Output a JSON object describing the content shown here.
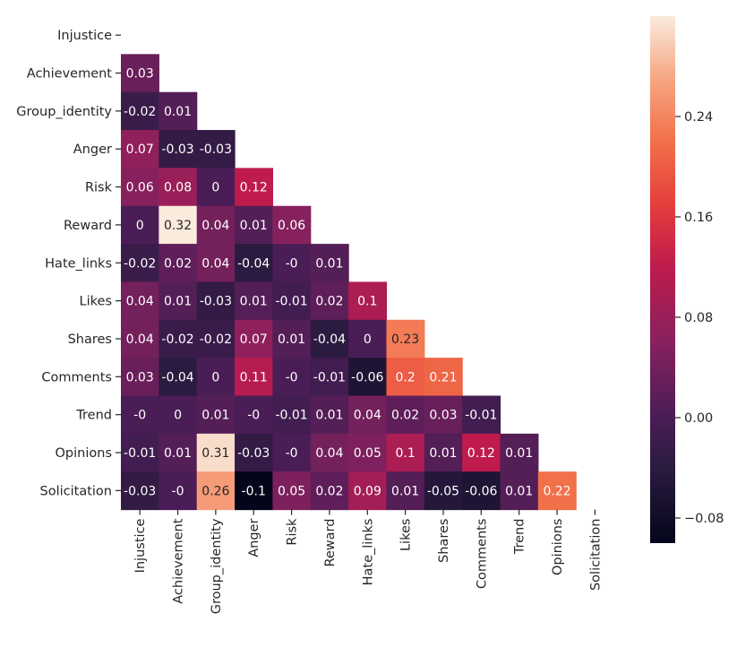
{
  "chart_data": {
    "type": "heatmap",
    "variables": [
      "Injustice",
      "Achievement",
      "Group_identity",
      "Anger",
      "Risk",
      "Reward",
      "Hate_links",
      "Likes",
      "Shares",
      "Comments",
      "Trend",
      "Opinions",
      "Solicitation"
    ],
    "matrix_lower_triangle": [
      [],
      [
        "0.03"
      ],
      [
        "-0.02",
        "0.01"
      ],
      [
        "0.07",
        "-0.03",
        "-0.03"
      ],
      [
        "0.06",
        "0.08",
        "0",
        "0.12"
      ],
      [
        "0",
        "0.32",
        "0.04",
        "0.01",
        "0.06"
      ],
      [
        "-0.02",
        "0.02",
        "0.04",
        "-0.04",
        "-0",
        "0.01"
      ],
      [
        "0.04",
        "0.01",
        "-0.03",
        "0.01",
        "-0.01",
        "0.02",
        "0.1"
      ],
      [
        "0.04",
        "-0.02",
        "-0.02",
        "0.07",
        "0.01",
        "-0.04",
        "0",
        "0.23"
      ],
      [
        "0.03",
        "-0.04",
        "0",
        "0.11",
        "-0",
        "-0.01",
        "-0.06",
        "0.2",
        "0.21"
      ],
      [
        "-0",
        "0",
        "0.01",
        "-0",
        "-0.01",
        "0.01",
        "0.04",
        "0.02",
        "0.03",
        "-0.01"
      ],
      [
        "-0.01",
        "0.01",
        "0.31",
        "-0.03",
        "-0",
        "0.04",
        "0.05",
        "0.1",
        "0.01",
        "0.12",
        "0.01"
      ],
      [
        "-0.03",
        "-0",
        "0.26",
        "-0.1",
        "0.05",
        "0.02",
        "0.09",
        "0.01",
        "-0.05",
        "-0.06",
        "0.01",
        "0.22"
      ]
    ],
    "mask": "upper triangle including diagonal",
    "colormap": "rocket",
    "color_range": [
      -0.1,
      0.32
    ],
    "colorbar_ticks": [
      "0.24",
      "0.16",
      "0.08",
      "0.00",
      "−0.08"
    ],
    "colorbar_tick_values": [
      0.24,
      0.16,
      0.08,
      0.0,
      -0.08
    ],
    "title": "",
    "xlabel": "",
    "ylabel": ""
  }
}
